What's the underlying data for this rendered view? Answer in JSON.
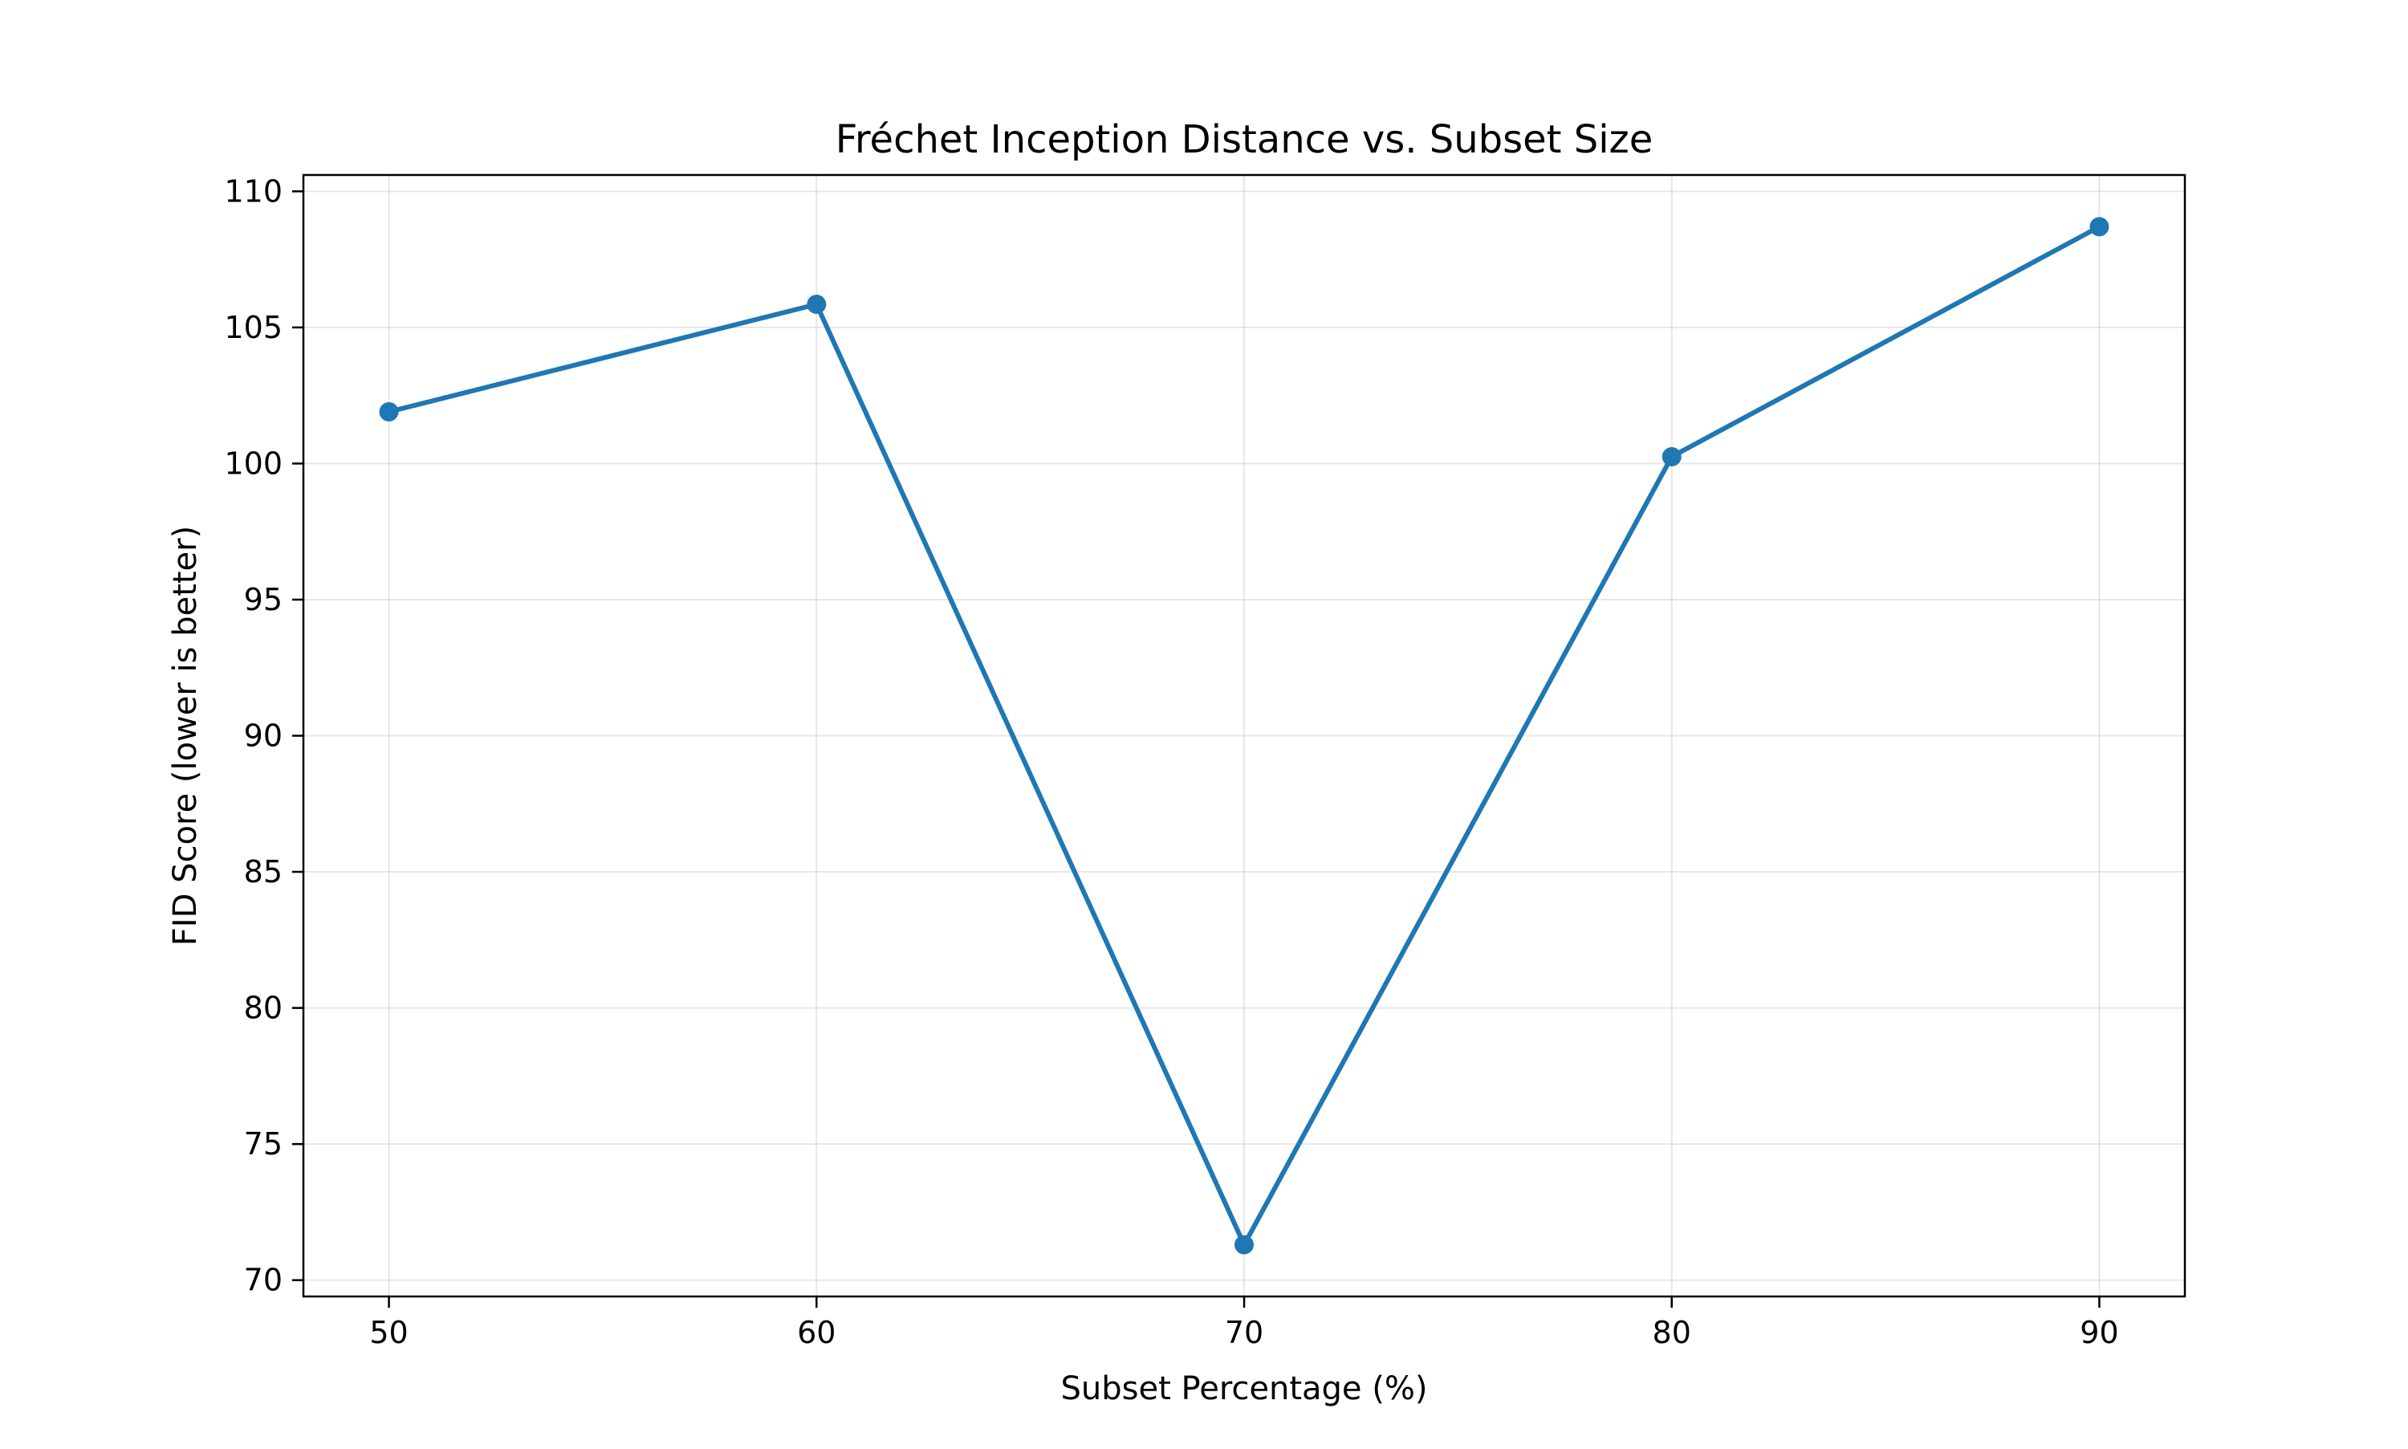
{
  "chart_data": {
    "type": "line",
    "title": "Fréchet Inception Distance vs. Subset Size",
    "xlabel": "Subset Percentage (%)",
    "ylabel": "FID Score (lower is better)",
    "x": [
      50,
      60,
      70,
      80,
      90
    ],
    "series": [
      {
        "values": [
          101.9,
          105.85,
          71.3,
          100.25,
          108.7
        ],
        "color": "#1f77b4",
        "marker": "circle"
      }
    ],
    "xlim": [
      48,
      92
    ],
    "ylim": [
      69.4,
      110.6
    ],
    "xticks": [
      50,
      60,
      70,
      80,
      90
    ],
    "yticks": [
      70,
      75,
      80,
      85,
      90,
      95,
      100,
      105,
      110
    ],
    "grid": true,
    "legend": "none"
  }
}
